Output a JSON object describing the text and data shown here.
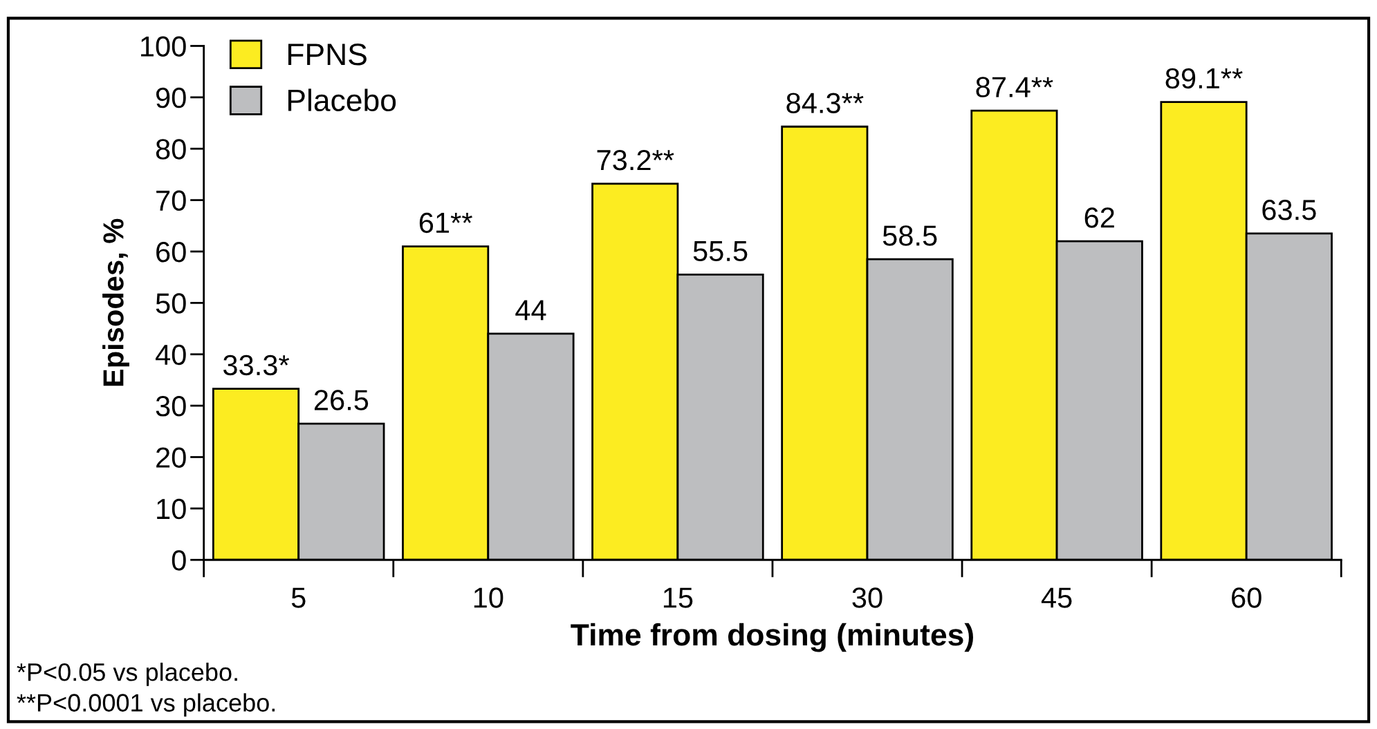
{
  "chart_data": {
    "type": "bar",
    "xlabel": "Time from dosing (minutes)",
    "ylabel": "Episodes, %",
    "categories": [
      "5",
      "10",
      "15",
      "30",
      "45",
      "60"
    ],
    "series": [
      {
        "name": "FPNS",
        "color": "#fcec21",
        "values": [
          33.3,
          61,
          73.2,
          84.3,
          87.4,
          89.1
        ],
        "value_labels": [
          "33.3*",
          "61**",
          "73.2**",
          "84.3**",
          "87.4**",
          "89.1**"
        ]
      },
      {
        "name": "Placebo",
        "color": "#bdbec0",
        "values": [
          26.5,
          44,
          55.5,
          58.5,
          62,
          63.5
        ],
        "value_labels": [
          "26.5",
          "44",
          "55.5",
          "58.5",
          "62",
          "63.5"
        ]
      }
    ],
    "ylim": [
      0,
      100
    ],
    "yticks": [
      0,
      10,
      20,
      30,
      40,
      50,
      60,
      70,
      80,
      90,
      100
    ],
    "grid": false,
    "legend": "top left",
    "annotations": [
      "*P<0.05 vs placebo.",
      "**P<0.0001 vs placebo."
    ]
  }
}
